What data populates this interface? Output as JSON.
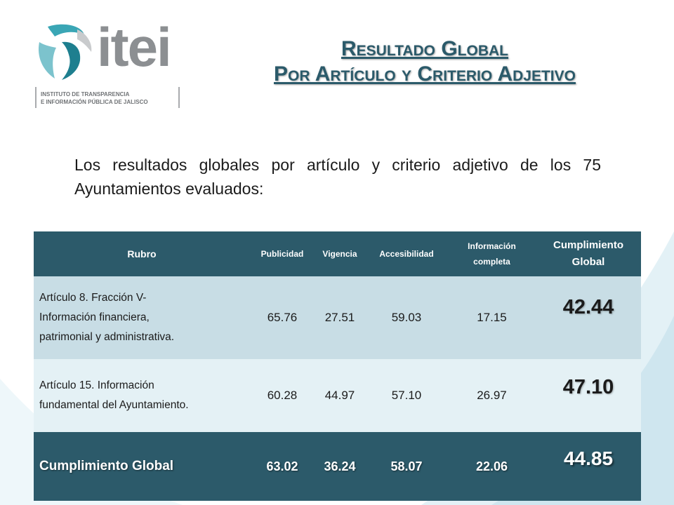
{
  "logo": {
    "word": "itei",
    "subtitle_line1": "INSTITUTO DE TRANSPARENCIA",
    "subtitle_line2": "E INFORMACIÓN PÚBLICA DE JALISCO"
  },
  "title": {
    "line1": "Resultado Global",
    "line2": "Por Artículo y Criterio Adjetivo"
  },
  "intro": "Los resultados globales por artículo y criterio adjetivo de los 75 Ayuntamientos evaluados:",
  "table": {
    "headers": {
      "rubro": "Rubro",
      "publicidad": "Publicidad",
      "vigencia": "Vigencia",
      "accesibilidad": "Accesibilidad",
      "informacion_1": "Información",
      "informacion_2": "completa",
      "cumplimiento_1": "Cumplimiento",
      "cumplimiento_2": "Global"
    },
    "rows": [
      {
        "rubro_1": "Artículo 8. Fracción V-",
        "rubro_2": "Información financiera,",
        "rubro_3": "patrimonial y administrativa.",
        "publicidad": "65.76",
        "vigencia": "27.51",
        "accesibilidad": "59.03",
        "informacion": "17.15",
        "cumplimiento": "42.44"
      },
      {
        "rubro_1": "Artículo 15. Información",
        "rubro_2": "fundamental del Ayuntamiento.",
        "publicidad": "60.28",
        "vigencia": "44.97",
        "accesibilidad": "57.10",
        "informacion": "26.97",
        "cumplimiento": "47.10"
      }
    ],
    "total": {
      "rubro": "Cumplimiento Global",
      "publicidad": "63.02",
      "vigencia": "36.24",
      "accesibilidad": "58.07",
      "informacion": "22.06",
      "cumplimiento": "44.85"
    }
  },
  "colors": {
    "header_bg": "#2c5a6a",
    "row1_bg": "#c8dde5",
    "row2_bg": "#e4f1f5",
    "title": "#2b5a6a",
    "logo_teal": "#3aa6b5"
  }
}
